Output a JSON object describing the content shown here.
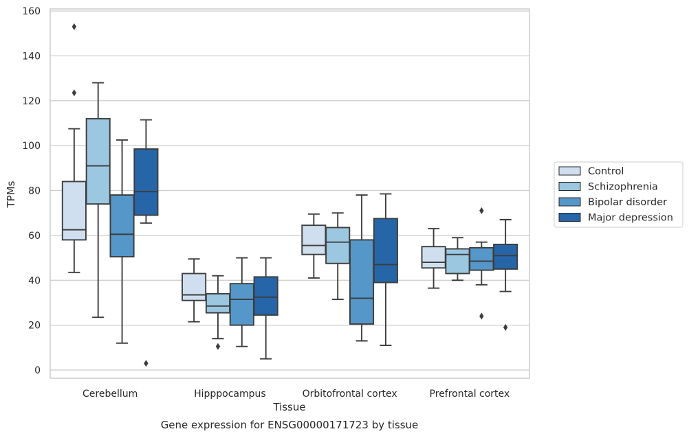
{
  "chart_data": {
    "type": "box",
    "caption": "Gene expression for ENSG00000171723 by tissue",
    "xlabel": "Tissue",
    "ylabel": "TPMs",
    "ylim": [
      -4,
      161
    ],
    "yticks": [
      0,
      20,
      40,
      60,
      80,
      100,
      120,
      140,
      160
    ],
    "grid": "horizontal",
    "legend_position": "right",
    "categories": [
      "Cerebellum",
      "Hipppocampus",
      "Orbitofrontal cortex",
      "Prefrontal cortex"
    ],
    "series": [
      {
        "name": "Control",
        "color": "#cfdff0",
        "boxes": [
          {
            "whislo": 43.5,
            "q1": 58,
            "med": 62.5,
            "q3": 84,
            "whishi": 107.5,
            "fliers": [
              153,
              123.5
            ]
          },
          {
            "whislo": 21.5,
            "q1": 31,
            "med": 33.5,
            "q3": 43,
            "whishi": 49.5,
            "fliers": []
          },
          {
            "whislo": 41,
            "q1": 51.5,
            "med": 55.5,
            "q3": 64.5,
            "whishi": 69.5,
            "fliers": []
          },
          {
            "whislo": 36.5,
            "q1": 45.5,
            "med": 48,
            "q3": 55,
            "whishi": 63,
            "fliers": []
          }
        ]
      },
      {
        "name": "Schizophrenia",
        "color": "#9bc7e0",
        "boxes": [
          {
            "whislo": 23.5,
            "q1": 74,
            "med": 91,
            "q3": 112,
            "whishi": 128,
            "fliers": []
          },
          {
            "whislo": 14,
            "q1": 25.5,
            "med": 28.5,
            "q3": 34,
            "whishi": 42,
            "fliers": [
              10.5
            ]
          },
          {
            "whislo": 31.5,
            "q1": 47.5,
            "med": 57,
            "q3": 63.5,
            "whishi": 70,
            "fliers": []
          },
          {
            "whislo": 40,
            "q1": 43,
            "med": 51.5,
            "q3": 54,
            "whishi": 59,
            "fliers": []
          }
        ]
      },
      {
        "name": "Bipolar disorder",
        "color": "#5597c9",
        "boxes": [
          {
            "whislo": 12,
            "q1": 50.5,
            "med": 60.5,
            "q3": 78,
            "whishi": 102.5,
            "fliers": []
          },
          {
            "whislo": 10.5,
            "q1": 20,
            "med": 31.5,
            "q3": 38.5,
            "whishi": 50,
            "fliers": []
          },
          {
            "whislo": 13,
            "q1": 20.5,
            "med": 32,
            "q3": 58,
            "whishi": 78,
            "fliers": []
          },
          {
            "whislo": 38,
            "q1": 44.5,
            "med": 48.5,
            "q3": 54.5,
            "whishi": 57,
            "fliers": [
              71,
              24
            ]
          }
        ]
      },
      {
        "name": "Major depression",
        "color": "#2765a9",
        "boxes": [
          {
            "whislo": 65.5,
            "q1": 69,
            "med": 79.5,
            "q3": 98.5,
            "whishi": 111.5,
            "fliers": [
              3
            ]
          },
          {
            "whislo": 5,
            "q1": 24.5,
            "med": 32.5,
            "q3": 41.5,
            "whishi": 50,
            "fliers": []
          },
          {
            "whislo": 11,
            "q1": 39,
            "med": 47,
            "q3": 67.5,
            "whishi": 78.5,
            "fliers": []
          },
          {
            "whislo": 35,
            "q1": 45,
            "med": 51,
            "q3": 56,
            "whishi": 67,
            "fliers": [
              19
            ]
          }
        ]
      }
    ]
  }
}
